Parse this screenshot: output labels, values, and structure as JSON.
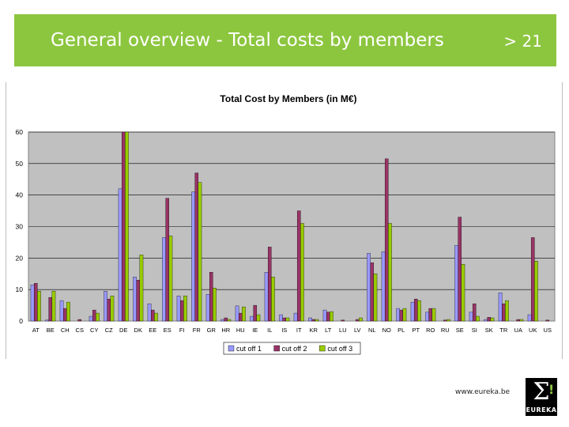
{
  "slide": {
    "title": "General overview - Total costs by members",
    "page_number": "> 21",
    "footer_url": "www.eureka.be",
    "logo_text": "EUREKA",
    "logo_symbol": "Σ",
    "logo_mark": "!"
  },
  "colors": {
    "header": "#8cc63f",
    "plot_background": "#c0c0c0",
    "series": [
      "#9999ff",
      "#993366",
      "#99cc00"
    ]
  },
  "chart_data": {
    "type": "bar",
    "title": "Total Cost by Members (in M€)",
    "xlabel": "",
    "ylabel": "",
    "ylim": [
      0,
      60
    ],
    "yticks": [
      0,
      10,
      20,
      30,
      40,
      50,
      60
    ],
    "grid": true,
    "legend_position": "bottom",
    "categories": [
      "AT",
      "BE",
      "CH",
      "CS",
      "CY",
      "CZ",
      "DE",
      "DK",
      "EE",
      "ES",
      "FI",
      "FR",
      "GR",
      "HR",
      "HU",
      "IE",
      "IL",
      "IS",
      "IT",
      "KR",
      "LT",
      "LU",
      "LV",
      "NL",
      "NO",
      "PL",
      "PT",
      "RO",
      "RU",
      "SE",
      "SI",
      "SK",
      "TR",
      "UA",
      "UK",
      "US"
    ],
    "series": [
      {
        "name": "cut off 1",
        "values": [
          11.5,
          0.3,
          6.5,
          0,
          1.5,
          9.5,
          42,
          14,
          5.5,
          26.5,
          8,
          41,
          8.5,
          0.5,
          4.8,
          1.5,
          15.5,
          2,
          2.5,
          1,
          3.5,
          0,
          0,
          21.5,
          22,
          4,
          6,
          2.8,
          0,
          24,
          2.8,
          0.5,
          9,
          0,
          2,
          0
        ]
      },
      {
        "name": "cut off 2",
        "values": [
          12,
          7.5,
          4,
          0.5,
          3.5,
          7,
          60,
          13,
          3.5,
          39,
          6.5,
          47,
          15.5,
          1,
          2.5,
          5,
          23.5,
          1,
          35,
          0.5,
          2.8,
          0.3,
          0.5,
          18.5,
          51.5,
          3.5,
          7,
          4,
          0.3,
          33,
          5.5,
          1.2,
          5.5,
          0.5,
          26.5,
          0.3
        ]
      },
      {
        "name": "cut off 3",
        "values": [
          9.5,
          9.5,
          6,
          0,
          2.5,
          8,
          60,
          21,
          2.5,
          27,
          8,
          44,
          10.5,
          0.5,
          4.5,
          2,
          14,
          1,
          31,
          0.5,
          3,
          0,
          1,
          15,
          31,
          4,
          6.5,
          4,
          0.5,
          18,
          1.5,
          1,
          6.5,
          0.5,
          19,
          0
        ]
      }
    ]
  }
}
